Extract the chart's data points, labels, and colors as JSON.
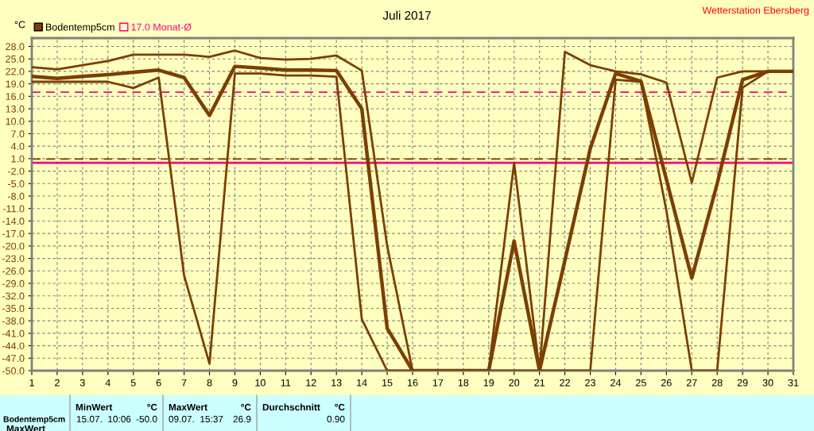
{
  "chart_data": {
    "type": "line",
    "title": "Juli 2017",
    "ylabel": "°C",
    "x": [
      1,
      2,
      3,
      4,
      5,
      6,
      7,
      8,
      9,
      10,
      11,
      12,
      13,
      14,
      15,
      16,
      17,
      18,
      19,
      20,
      21,
      22,
      23,
      24,
      25,
      26,
      27,
      28,
      29,
      30,
      31
    ],
    "series": [
      {
        "color": "#7b3f00",
        "values": [
          23,
          22.5,
          23.5,
          24.5,
          26,
          26,
          26,
          25.5,
          27,
          25.2,
          24.8,
          25,
          25.8,
          22.2,
          -20,
          -50,
          -50,
          -50,
          -50,
          0,
          -50,
          26.7,
          23.5,
          22,
          21.3,
          19.3,
          -4.8,
          20.5,
          22,
          22,
          22
        ]
      },
      {
        "name": "Bodentemp5cm",
        "color": "#7b3f00",
        "values": [
          20.8,
          20.3,
          20.8,
          21.2,
          21.8,
          22.3,
          20.5,
          11.4,
          23.2,
          22.8,
          22.3,
          22.3,
          22.2,
          13,
          -39.8,
          -50,
          -50,
          -50,
          -50,
          -18.8,
          -50,
          -23.5,
          3.4,
          21.5,
          19.6,
          -4,
          -27.7,
          -5,
          20,
          22,
          22
        ]
      },
      {
        "color": "#7b3f00",
        "values": [
          19.5,
          19.5,
          19.5,
          19.5,
          18,
          20.5,
          -27.1,
          -48.3,
          21.5,
          21.5,
          21,
          21,
          20.7,
          -37.6,
          -50,
          -50,
          -50,
          -50,
          -50,
          -50,
          -50,
          -50,
          -50,
          20,
          19.5,
          -11.5,
          -50,
          -50,
          18.1,
          22,
          22
        ]
      }
    ],
    "xlim": [
      1,
      31
    ],
    "xticks": [
      1,
      2,
      3,
      4,
      5,
      6,
      7,
      8,
      9,
      10,
      11,
      12,
      13,
      14,
      15,
      16,
      17,
      18,
      19,
      20,
      21,
      22,
      23,
      24,
      25,
      26,
      27,
      28,
      29,
      30,
      31
    ],
    "ylim": [
      -50,
      30
    ],
    "yticks": [
      {
        "value": -50,
        "label": "-50.0"
      },
      {
        "value": -47,
        "label": "-47.0"
      },
      {
        "value": -44,
        "label": "-44.0"
      },
      {
        "value": -41,
        "label": "-41.0"
      },
      {
        "value": -38,
        "label": "-38.0"
      },
      {
        "value": -35,
        "label": "-35.0"
      },
      {
        "value": -32,
        "label": "-32.0"
      },
      {
        "value": -29,
        "label": "-29.0"
      },
      {
        "value": -26,
        "label": "-26.0"
      },
      {
        "value": -23,
        "label": "-23.0"
      },
      {
        "value": -20,
        "label": "-20.0"
      },
      {
        "value": -17,
        "label": "-17.0"
      },
      {
        "value": -14,
        "label": "-14.0"
      },
      {
        "value": -11,
        "label": "-11.0"
      },
      {
        "value": -8,
        "label": "-8.0"
      },
      {
        "value": -5,
        "label": "-5.0"
      },
      {
        "value": -2,
        "label": "-2.0"
      },
      {
        "value": 1,
        "label": "1.0"
      },
      {
        "value": 4,
        "label": "4.0"
      },
      {
        "value": 7,
        "label": "7.0"
      },
      {
        "value": 10,
        "label": "10.0"
      },
      {
        "value": 13,
        "label": "13.0"
      },
      {
        "value": 16,
        "label": "16.0"
      },
      {
        "value": 19,
        "label": "19.0"
      },
      {
        "value": 22,
        "label": "22.0"
      },
      {
        "value": 25,
        "label": "25.0"
      },
      {
        "value": 28,
        "label": "28.0"
      }
    ],
    "ref_lines": [
      {
        "axis": "y",
        "value": 17,
        "label": "17.0 Monat-Ø",
        "color": "#ff0080",
        "line_style": "dashed"
      },
      {
        "axis": "y",
        "value": 0.9,
        "color": "#7b3f00",
        "line_style": "dashed"
      },
      {
        "axis": "y",
        "value": 0,
        "color": "#ff0080",
        "line_style": "solid"
      }
    ],
    "grid": true,
    "legend": "top left",
    "marker": "none",
    "line_style": "solid",
    "annotations": [
      "Wetterstation Ebersberg",
      "MinWert",
      "°C",
      "MaxWert",
      "°C",
      "Durchschnitt",
      "°C",
      "Bodentemp5cm",
      "15.07.  10:06",
      "-50.0",
      "09.07.  15:37",
      "26.9",
      "0.90",
      "MaxWert"
    ]
  }
}
